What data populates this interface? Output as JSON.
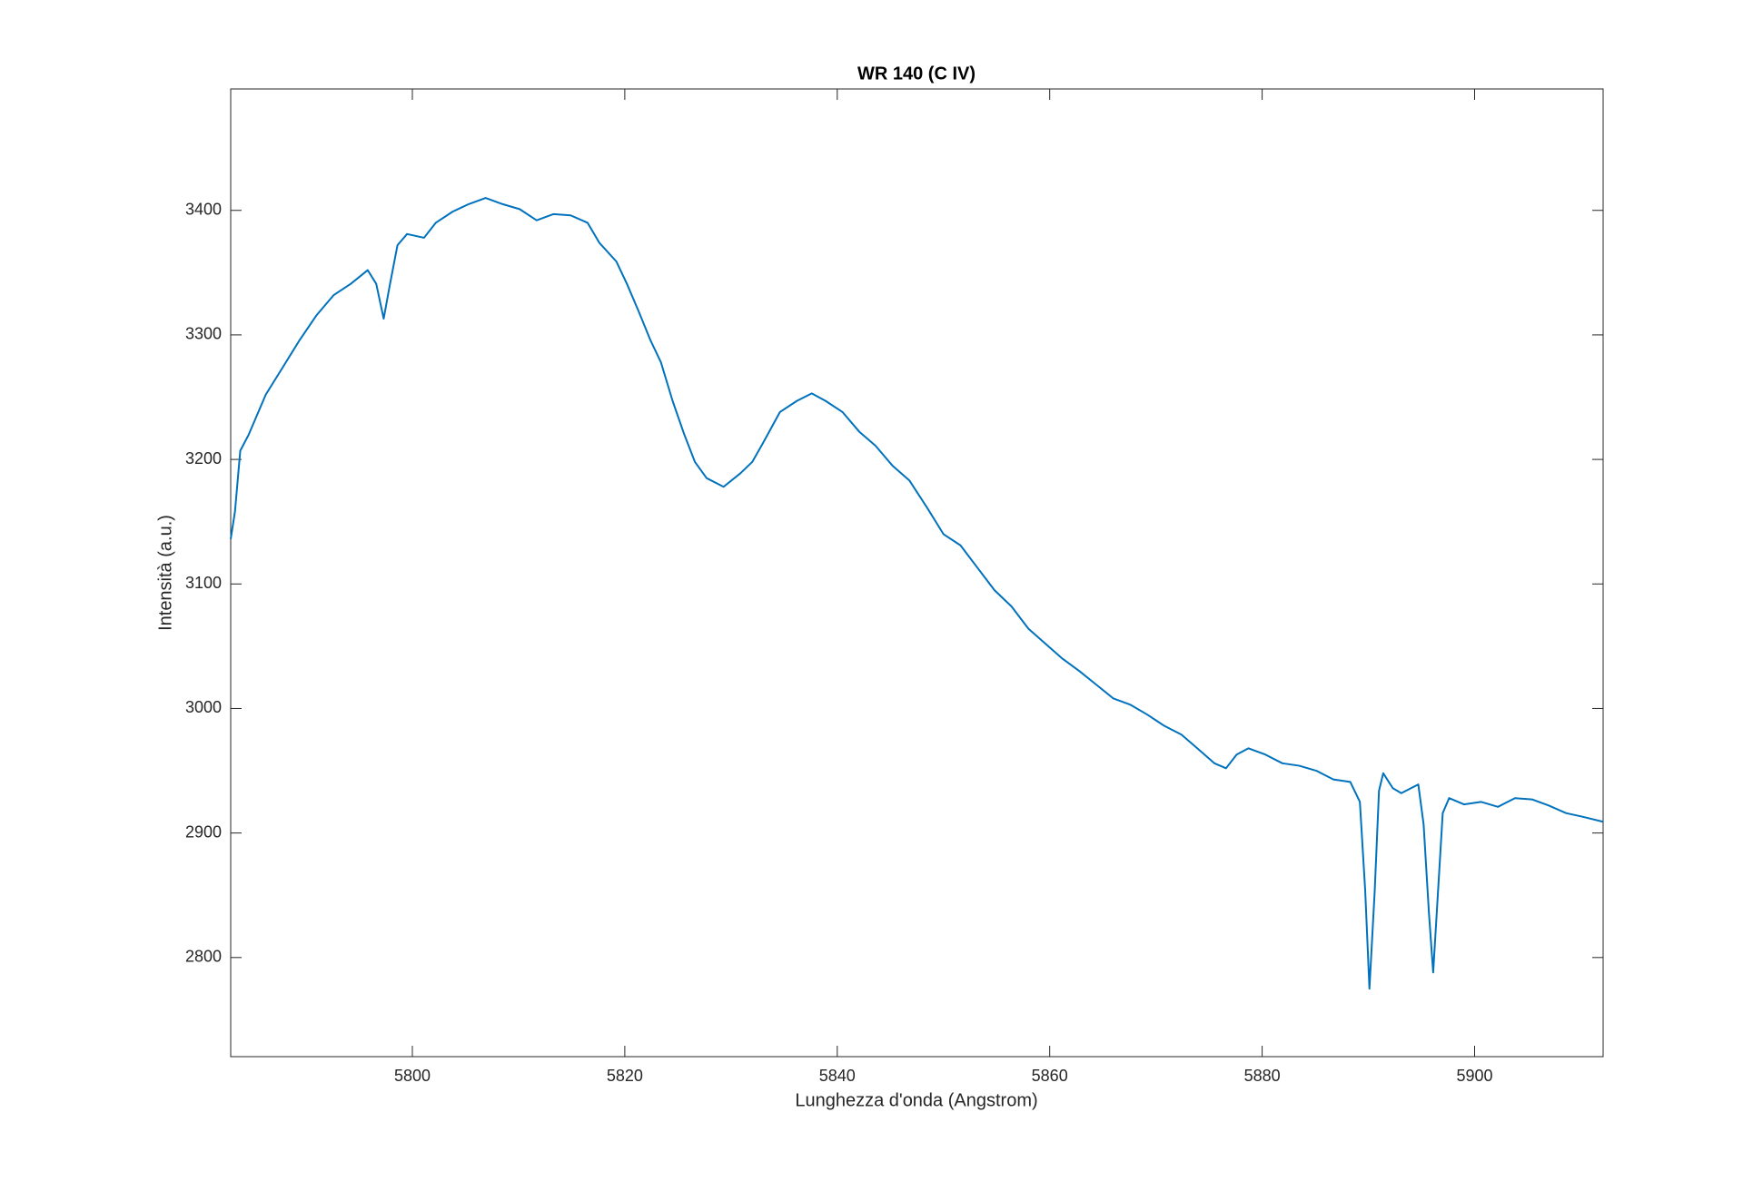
{
  "chart_data": {
    "type": "line",
    "title": "WR 140 (C IV)",
    "x_label": "Lunghezza d'onda (Angstrom)",
    "y_label": "Intensità (a.u.)",
    "xlim": [
      5782.9,
      5912.1
    ],
    "ylim": [
      2720.4,
      3497.5
    ],
    "xticks": [
      5800,
      5820,
      5840,
      5860,
      5880,
      5900
    ],
    "yticks": [
      2800,
      2900,
      3000,
      3100,
      3200,
      3300,
      3400
    ],
    "grid": false,
    "series": [
      {
        "color": "#0072bd",
        "x": [
          5782.9,
          5783.3,
          5783.8,
          5784.6,
          5786.2,
          5787.8,
          5789.4,
          5791,
          5792.6,
          5794.2,
          5795.8,
          5796.6,
          5797.3,
          5797.9,
          5798.6,
          5799.5,
          5801.1,
          5802.2,
          5803.8,
          5805.3,
          5806.9,
          5808.5,
          5810.1,
          5811.7,
          5813.3,
          5814.9,
          5816.5,
          5817.6,
          5819.2,
          5820.2,
          5821.3,
          5822.4,
          5823.4,
          5824.5,
          5825.6,
          5826.6,
          5827.7,
          5829.3,
          5830.9,
          5832,
          5833,
          5834.6,
          5836.2,
          5837.6,
          5838.9,
          5840.5,
          5842.1,
          5843.6,
          5845.2,
          5846.8,
          5848.4,
          5850,
          5851.6,
          5853.2,
          5854.8,
          5856.4,
          5858,
          5859.6,
          5861.2,
          5862.8,
          5864.4,
          5866,
          5867.6,
          5869.2,
          5870.8,
          5872.4,
          5873.9,
          5875.5,
          5876.6,
          5877.6,
          5878.7,
          5880.3,
          5881.9,
          5883.5,
          5885.1,
          5886.7,
          5888.3,
          5889.2,
          5889.7,
          5890.1,
          5890.6,
          5891,
          5891.4,
          5892.3,
          5893.1,
          5894.7,
          5895.2,
          5895.7,
          5896.1,
          5896.5,
          5897,
          5897.6,
          5899,
          5900.6,
          5902.2,
          5903.8,
          5905.4,
          5907,
          5908.6,
          5910.2,
          5912.1
        ],
        "values": [
          3136,
          3158,
          3207,
          3220,
          3252,
          3274,
          3296,
          3316,
          3332,
          3341,
          3352,
          3341,
          3313,
          3341,
          3372,
          3381,
          3378,
          3390,
          3399,
          3405,
          3410,
          3405,
          3401,
          3392,
          3397,
          3396,
          3390,
          3374,
          3359,
          3341,
          3319,
          3296,
          3278,
          3247,
          3220,
          3198,
          3185,
          3178,
          3189,
          3198,
          3213,
          3238,
          3247,
          3253,
          3247,
          3238,
          3222,
          3211,
          3195,
          3183,
          3162,
          3140,
          3131,
          3113,
          3095,
          3082,
          3064,
          3052,
          3040,
          3030,
          3019,
          3008,
          3003,
          2995,
          2986,
          2979,
          2968,
          2956,
          2952,
          2963,
          2968,
          2963,
          2956,
          2954,
          2950,
          2943,
          2941,
          2925,
          2854,
          2775,
          2854,
          2934,
          2948,
          2936,
          2932,
          2939,
          2907,
          2836,
          2788,
          2845,
          2916,
          2928,
          2923,
          2925,
          2921,
          2928,
          2927,
          2922,
          2916,
          2913,
          2909
        ]
      }
    ]
  }
}
